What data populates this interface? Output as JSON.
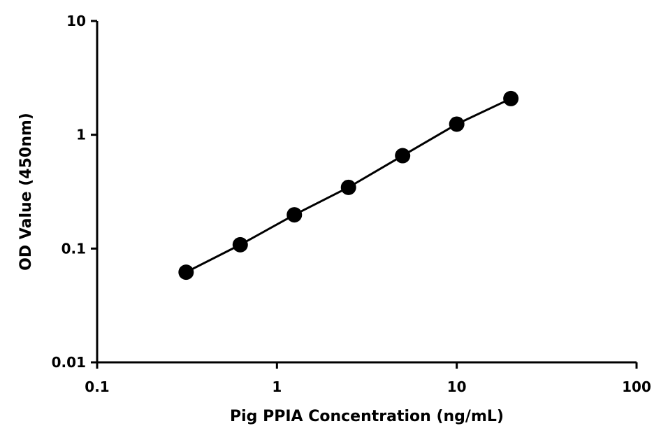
{
  "chart_data": {
    "type": "scatter",
    "xlabel": "Pig PPIA Concentration (ng/mL)",
    "ylabel": "OD Value (450nm)",
    "x_scale": "log",
    "y_scale": "log",
    "xlim": [
      0.1,
      100
    ],
    "ylim": [
      0.01,
      10
    ],
    "x_ticks": [
      "0.1",
      "1",
      "10",
      "100"
    ],
    "y_ticks": [
      "0.01",
      "0.1",
      "1",
      "10"
    ],
    "grid": false,
    "legend": "none",
    "series": [
      {
        "x": [
          0.3125,
          0.625,
          1.25,
          2.5,
          5,
          10,
          20
        ],
        "y": [
          0.062,
          0.108,
          0.198,
          0.345,
          0.655,
          1.24,
          2.08
        ],
        "color": "#000000",
        "marker": "circle",
        "line": true
      }
    ]
  }
}
